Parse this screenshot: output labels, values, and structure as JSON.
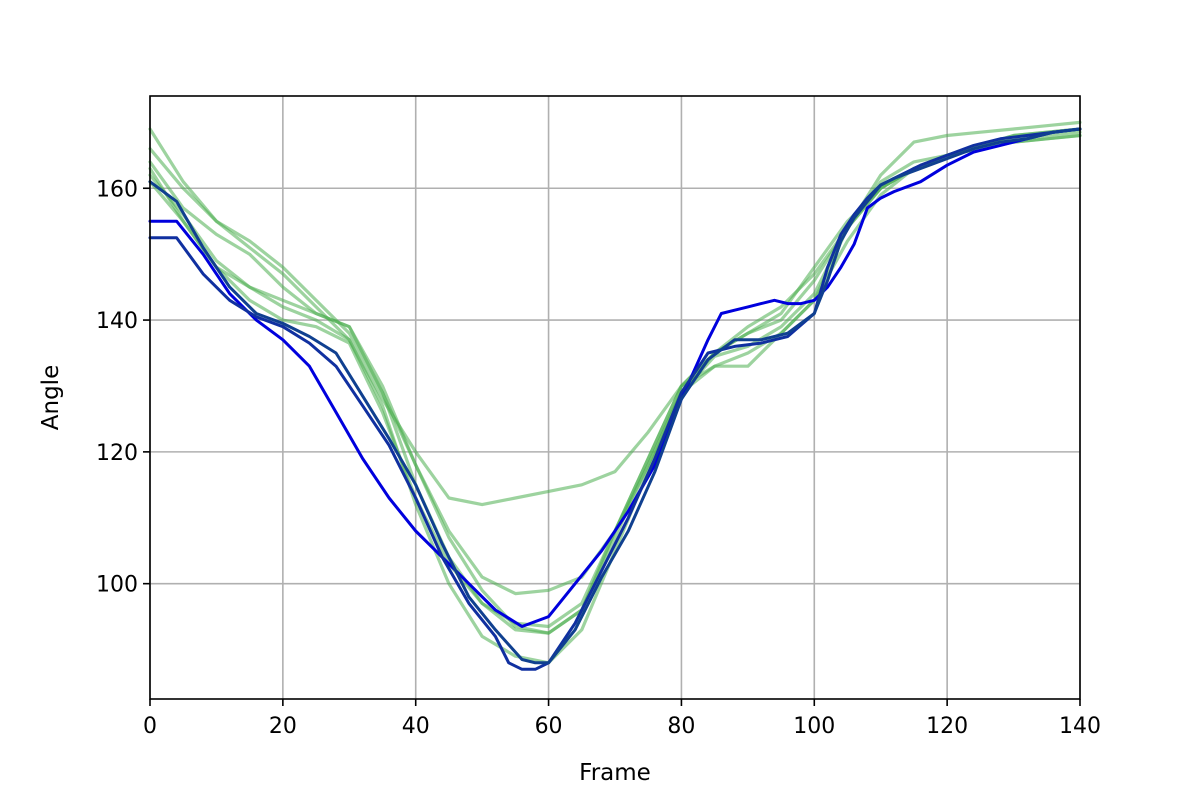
{
  "chart_data": {
    "type": "line",
    "title": "",
    "xlabel": "Frame",
    "ylabel": "Angle",
    "xlim": [
      0,
      140
    ],
    "ylim": [
      82.5,
      174
    ],
    "xticks": [
      0,
      20,
      40,
      60,
      80,
      100,
      120,
      140
    ],
    "yticks": [
      100,
      120,
      140,
      160
    ],
    "grid": true,
    "legend": "none",
    "series": [
      {
        "color": "#4caf50",
        "opacity": 0.55,
        "x": [
          0,
          5,
          10,
          15,
          20,
          25,
          30,
          35,
          40,
          45,
          50,
          55,
          60,
          65,
          70,
          75,
          80,
          85,
          90,
          95,
          100,
          105,
          110,
          115,
          120,
          125,
          130,
          135,
          140
        ],
        "y": [
          169,
          161,
          155,
          151,
          147,
          142,
          137,
          128,
          120,
          113,
          112,
          113,
          114,
          115,
          117,
          123,
          130,
          133,
          133,
          138,
          143,
          154,
          162,
          167,
          168,
          168.5,
          169,
          169.5,
          170
        ]
      },
      {
        "color": "#4caf50",
        "opacity": 0.55,
        "x": [
          0,
          5,
          10,
          15,
          20,
          25,
          30,
          35,
          40,
          45,
          50,
          55,
          60,
          65,
          70,
          75,
          80,
          85,
          90,
          95,
          100,
          105,
          110,
          115,
          120,
          125,
          130,
          135,
          140
        ],
        "y": [
          166,
          160,
          155,
          152,
          148,
          143,
          138,
          129,
          118,
          108,
          101,
          98.5,
          99,
          101,
          108,
          118,
          129,
          135,
          139,
          142,
          147,
          154,
          161,
          164,
          165,
          166.5,
          168,
          168.5,
          169
        ]
      },
      {
        "color": "#4caf50",
        "opacity": 0.55,
        "x": [
          0,
          5,
          10,
          15,
          20,
          25,
          30,
          35,
          40,
          45,
          50,
          55,
          60,
          65,
          70,
          75,
          80,
          85,
          90,
          95,
          100,
          105,
          110,
          115,
          120,
          125,
          130,
          135,
          140
        ],
        "y": [
          164,
          157,
          153,
          150,
          145,
          141,
          139,
          130,
          118,
          107,
          99,
          93.5,
          92.5,
          96,
          108,
          119,
          130,
          135,
          138,
          141,
          148,
          155,
          160,
          163,
          165,
          166,
          167,
          167.5,
          168
        ]
      },
      {
        "color": "#4caf50",
        "opacity": 0.55,
        "x": [
          0,
          5,
          10,
          15,
          20,
          25,
          30,
          35,
          40,
          45,
          50,
          55,
          60,
          65,
          70,
          75,
          80,
          85,
          90,
          95,
          100,
          105,
          110,
          115,
          120,
          125,
          130,
          135,
          140
        ],
        "y": [
          162,
          156,
          149,
          145,
          143,
          141,
          139,
          129,
          115,
          104,
          97,
          93,
          92.5,
          96,
          107,
          118,
          129,
          134.5,
          136,
          139,
          144,
          154,
          160,
          163,
          165,
          166,
          167,
          167.5,
          168
        ]
      },
      {
        "color": "#4caf50",
        "opacity": 0.55,
        "x": [
          0,
          5,
          10,
          15,
          20,
          25,
          30,
          35,
          40,
          45,
          50,
          55,
          60,
          65,
          70,
          75,
          80,
          85,
          90,
          95,
          100,
          105,
          110,
          115,
          120,
          125,
          130,
          135,
          140
        ],
        "y": [
          163,
          155,
          148,
          143,
          140,
          139,
          136.5,
          126,
          113,
          103,
          97,
          94,
          93.5,
          97,
          108,
          119,
          130,
          135,
          138,
          140,
          146,
          154,
          160,
          163,
          165,
          166.5,
          168,
          168.5,
          169
        ]
      },
      {
        "color": "#4caf50",
        "opacity": 0.55,
        "x": [
          0,
          5,
          10,
          15,
          20,
          25,
          30,
          35,
          40,
          45,
          50,
          55,
          60,
          65,
          70,
          75,
          80,
          85,
          90,
          95,
          100,
          105,
          110,
          115,
          120,
          125,
          130,
          135,
          140
        ],
        "y": [
          161,
          155,
          148,
          145,
          142,
          140,
          137,
          127,
          112,
          100,
          92,
          89,
          88,
          93,
          105,
          117,
          129,
          133,
          135,
          138,
          143,
          152,
          159,
          163,
          165,
          166.5,
          167.5,
          168,
          168.5
        ]
      },
      {
        "color": "#0000dd",
        "opacity": 1.0,
        "x": [
          0,
          4,
          8,
          12,
          16,
          20,
          24,
          28,
          32,
          36,
          40,
          44,
          48,
          52,
          56,
          60,
          64,
          68,
          72,
          76,
          80,
          84,
          86,
          88,
          90,
          92,
          94,
          96,
          98,
          100,
          102,
          104,
          106,
          108,
          110,
          112,
          116,
          120,
          124,
          128,
          132,
          136,
          140
        ],
        "y": [
          155,
          155,
          150,
          144,
          140,
          137,
          133,
          126,
          119,
          113,
          108,
          104,
          100,
          96,
          93.5,
          95,
          100,
          105,
          111,
          118,
          128,
          137,
          141,
          141.5,
          142,
          142.5,
          143,
          142.5,
          142.5,
          143,
          145,
          148,
          151.5,
          157,
          158.5,
          159.5,
          161,
          163.5,
          165.5,
          166.5,
          167.5,
          168.5,
          169
        ]
      },
      {
        "color": "#1030a0",
        "opacity": 1.0,
        "x": [
          0,
          4,
          8,
          12,
          16,
          20,
          24,
          28,
          32,
          36,
          40,
          44,
          48,
          52,
          54,
          56,
          58,
          60,
          64,
          68,
          72,
          76,
          80,
          84,
          88,
          92,
          96,
          100,
          102,
          104,
          106,
          108,
          110,
          112,
          116,
          120,
          124,
          128,
          132,
          136,
          140
        ],
        "y": [
          152.5,
          152.5,
          147,
          143,
          140.5,
          139,
          136.5,
          133,
          127,
          121,
          113,
          104,
          97,
          92,
          88,
          87,
          87,
          88,
          94,
          102,
          110,
          119,
          129,
          135,
          136,
          136.5,
          137.5,
          141,
          148,
          153,
          156,
          158.5,
          160.5,
          161.5,
          163.5,
          165,
          166.5,
          167.5,
          168,
          168.5,
          169
        ]
      },
      {
        "color": "#104090",
        "opacity": 1.0,
        "x": [
          0,
          4,
          8,
          12,
          16,
          20,
          24,
          28,
          32,
          36,
          40,
          44,
          48,
          52,
          56,
          58,
          60,
          64,
          68,
          72,
          76,
          80,
          84,
          88,
          92,
          96,
          100,
          102,
          104,
          106,
          108,
          110,
          112,
          116,
          120,
          124,
          128,
          132,
          136,
          140
        ],
        "y": [
          161,
          158,
          151,
          145,
          141,
          139.5,
          137.5,
          135,
          128.5,
          122,
          115,
          106,
          98,
          93,
          88.5,
          88,
          88,
          93,
          101,
          108,
          117,
          128,
          134,
          137,
          137,
          138,
          141,
          146,
          152,
          155.5,
          158,
          160.5,
          161.5,
          163,
          164.5,
          166,
          167,
          167.5,
          168.5,
          169
        ]
      }
    ]
  }
}
